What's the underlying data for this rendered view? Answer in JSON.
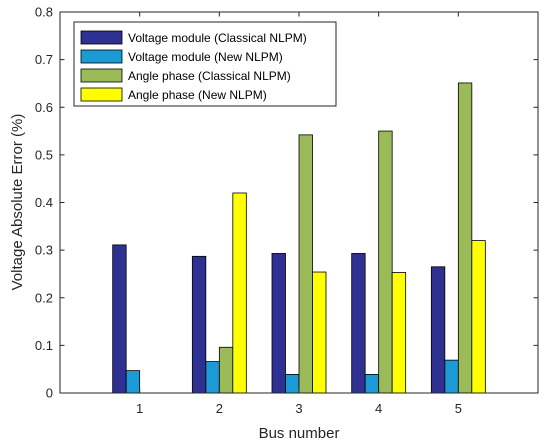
{
  "chart_data": {
    "type": "bar",
    "title": "",
    "xlabel": "Bus number",
    "ylabel": "Voltage Absolute Error (%)",
    "categories": [
      "1",
      "2",
      "3",
      "4",
      "5"
    ],
    "xlim": [
      0,
      6
    ],
    "ylim": [
      0,
      0.8
    ],
    "yticks": [
      "0",
      "0.1",
      "0.2",
      "0.3",
      "0.4",
      "0.5",
      "0.6",
      "0.7",
      "0.8"
    ],
    "grid": false,
    "legend_position": "top-left",
    "series": [
      {
        "name": "Voltage module (Classical NLPM)",
        "color": "#2e3192",
        "values": [
          0.311,
          0.287,
          0.293,
          0.293,
          0.265
        ]
      },
      {
        "name": "Voltage module (New NLPM)",
        "color": "#1b9ad6",
        "values": [
          0.047,
          0.066,
          0.039,
          0.039,
          0.069
        ]
      },
      {
        "name": "Angle phase (Classical NLPM)",
        "color": "#9bbb59",
        "values": [
          0.0,
          0.096,
          0.542,
          0.55,
          0.651
        ]
      },
      {
        "name": "Angle phase (New NLPM)",
        "color": "#ffff00",
        "values": [
          0.0,
          0.42,
          0.254,
          0.253,
          0.32
        ]
      }
    ]
  }
}
